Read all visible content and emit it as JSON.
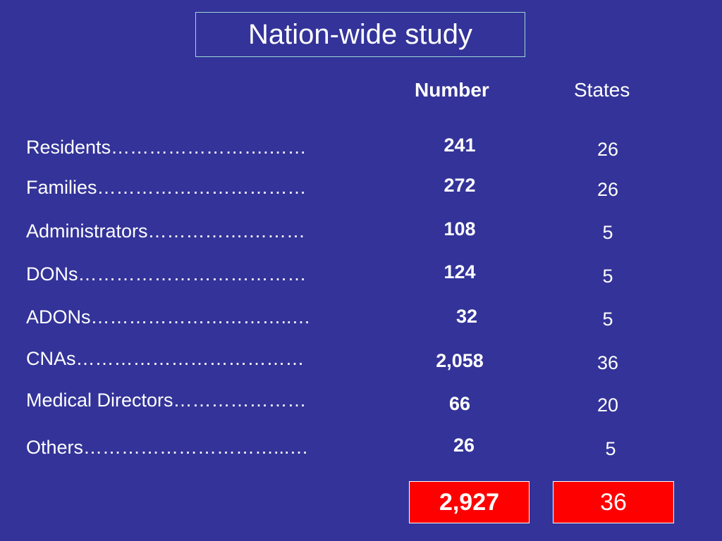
{
  "title": "Nation-wide study",
  "headers": {
    "number": "Number",
    "states": "States"
  },
  "rows": [
    {
      "label": "Residents…………………….……",
      "number": "241",
      "states": "26"
    },
    {
      "label": "Families……………………………",
      "number": "272",
      "states": "26"
    },
    {
      "label": "Administrators…………….………",
      "number": "108",
      "states": "5"
    },
    {
      "label": "DONs………………………………",
      "number": "124",
      "states": "5"
    },
    {
      "label": "ADONs…………………………..…",
      "number": "32",
      "states": "5"
    },
    {
      "label": "CNAs………………………………",
      "number": "2,058",
      "states": "36"
    },
    {
      "label": "Medical Directors…………………",
      "number": "66",
      "states": "20"
    },
    {
      "label": "Others…………………………...…",
      "number": "26",
      "states": "5"
    }
  ],
  "totals": {
    "number": "2,927",
    "states": "36"
  }
}
